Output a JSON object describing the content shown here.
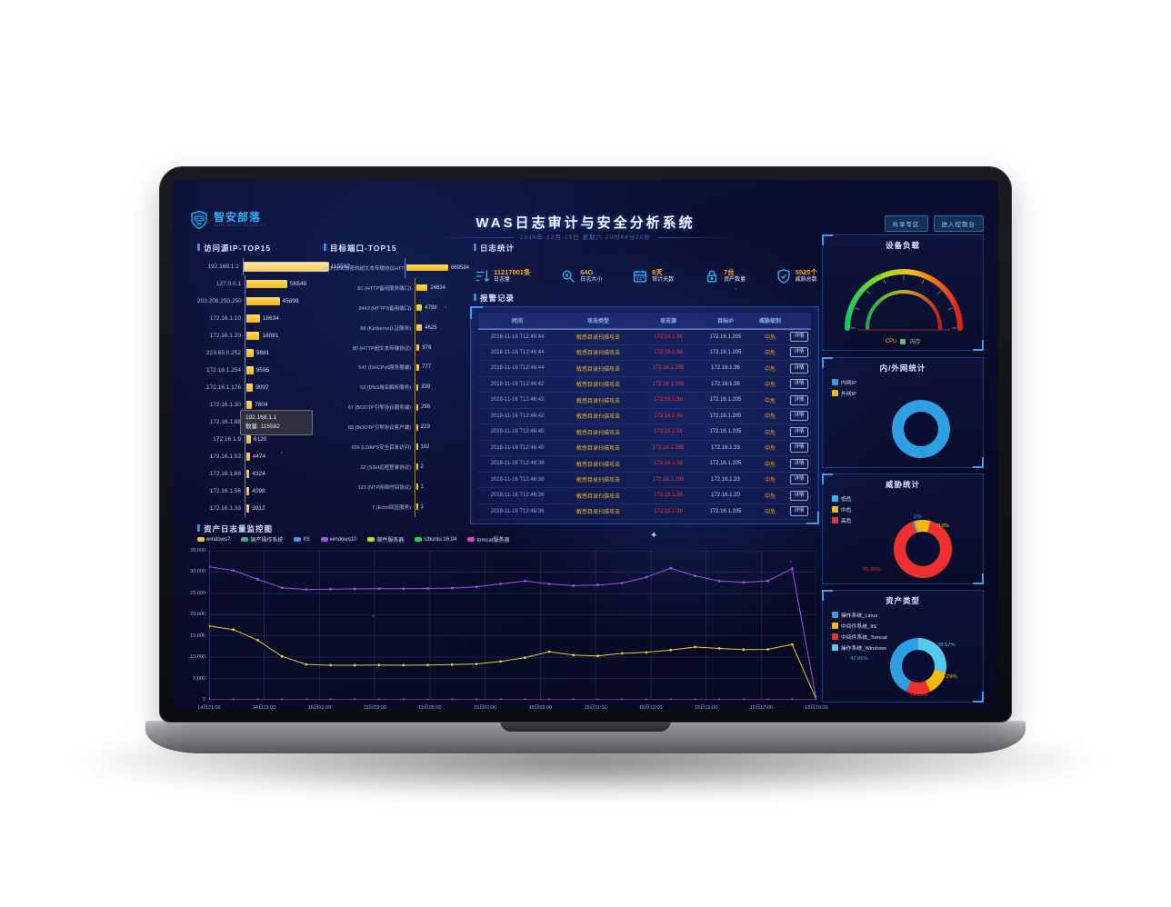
{
  "header": {
    "brand": "智安部落",
    "brand_sub": "INTELLIGENT SECURITY",
    "title": "WAS日志审计与安全分析系统",
    "subtitle": "2018年-12月-15日 星期六 20时44分20秒",
    "buttons": [
      {
        "label": "共享专区"
      },
      {
        "label": "进入控制台"
      }
    ]
  },
  "section_titles": {
    "log_stats": "日志统计",
    "alerts": "报警记录"
  },
  "stats": {
    "items": [
      {
        "value": "11217001条",
        "label": "日志量"
      },
      {
        "value": "64G",
        "label": "日志大小"
      },
      {
        "value": "8天",
        "label": "审计天数"
      },
      {
        "value": "7台",
        "label": "资产数量"
      },
      {
        "value": "5525个",
        "label": "威胁总数"
      }
    ]
  },
  "ip_tooltip": {
    "title": "192.168.1.1",
    "text": "数量: 115582"
  },
  "alerts": {
    "columns": [
      "时间",
      "攻击类型",
      "攻击源",
      "目标IP",
      "威胁级别",
      ""
    ],
    "action_label": "详情",
    "rows": [
      {
        "time": "2018-11-16 T12:46:44",
        "type": "敏感目录扫描攻击",
        "source": "172.16.1.36",
        "target": "172.16.1.205",
        "level": "中危"
      },
      {
        "time": "2018-11-16 T12:46:44",
        "type": "敏感目录扫描攻击",
        "source": "172.16.1.36",
        "target": "172.16.1.205",
        "level": "中危"
      },
      {
        "time": "2018-11-16 T12:46:44",
        "type": "敏感目录扫描攻击",
        "source": "172.16.1.205",
        "target": "172.16.1.36",
        "level": "中危"
      },
      {
        "time": "2018-11-16 T12:46:42",
        "type": "敏感目录扫描攻击",
        "source": "172.16.1.205",
        "target": "172.16.1.36",
        "level": "中危"
      },
      {
        "time": "2018-11-16 T12:46:42",
        "type": "敏感目录扫描攻击",
        "source": "172.16.1.36",
        "target": "172.16.1.205",
        "level": "中危"
      },
      {
        "time": "2018-11-16 T12:46:42",
        "type": "敏感目录扫描攻击",
        "source": "172.16.1.36",
        "target": "172.16.1.205",
        "level": "中危"
      },
      {
        "time": "2018-11-16 T12:46:40",
        "type": "敏感目录扫描攻击",
        "source": "172.16.1.36",
        "target": "172.16.1.205",
        "level": "中危"
      },
      {
        "time": "2018-11-16 T12:46:40",
        "type": "敏感目录扫描攻击",
        "source": "172.16.1.205",
        "target": "172.16.1.33",
        "level": "中危"
      },
      {
        "time": "2018-11-16 T12:46:38",
        "type": "敏感目录扫描攻击",
        "source": "172.16.1.36",
        "target": "172.16.1.205",
        "level": "中危"
      },
      {
        "time": "2018-11-16 T12:46:38",
        "type": "敏感目录扫描攻击",
        "source": "172.16.1.205",
        "target": "172.16.1.33",
        "level": "中危"
      },
      {
        "time": "2018-11-16 T12:46:36",
        "type": "敏感目录扫描攻击",
        "source": "172.16.1.36",
        "target": "172.16.1.20",
        "level": "中危"
      },
      {
        "time": "2018-11-16 T12:46:36",
        "type": "敏感目录扫描攻击",
        "source": "172.16.1.36",
        "target": "172.16.1.205",
        "level": "中危"
      }
    ]
  },
  "chart_data": [
    {
      "id": "ip_top15",
      "type": "bar",
      "orientation": "horizontal",
      "title": "访问源IP-TOP15",
      "highlight_index": 0,
      "categories": [
        "192.168.1.1",
        "127.0.0.1",
        "203.208.250.250",
        "172.16.1.10",
        "172.16.1.20",
        "223.65.0.252",
        "172.16.1.254",
        "172.16.1.176",
        "172.16.1.30",
        "172.16.1.88",
        "172.16.1.9",
        "172.16.1.52",
        "172.16.1.66",
        "172.16.1.56",
        "172.16.1.33"
      ],
      "values": [
        115582,
        56548,
        45898,
        18634,
        18081,
        9881,
        9595,
        9097,
        7804,
        7600,
        6120,
        4474,
        4324,
        4098,
        3912
      ],
      "bar_color": "#f2b81c"
    },
    {
      "id": "port_top15",
      "type": "bar",
      "orientation": "horizontal",
      "title": "目标端口-TOP15",
      "categories": [
        "443 (SSL加密的超文本传输协议HTTPS)",
        "81 (HTTP备用服务端口)",
        "8443 (HTTPS备用端口)",
        "88 (Kerberos认证服务)",
        "80 (HTTP超文本传输协议)",
        "547 (DHCPv6服务器端)",
        "53 (DNS域名解析服务)",
        "67 (BOOTP引导协议服务端)",
        "68 (BOOTP引导协议客户端)",
        "636 (LDAPS安全目录访问)",
        "22 (SSH远程登录协议)",
        "123 (NTP网络时间协议)",
        "7 (Echo回显服务)"
      ],
      "values": [
        669584,
        24634,
        4788,
        4625,
        978,
        777,
        339,
        298,
        223,
        102,
        2,
        1,
        1
      ],
      "bar_color": "#f2b81c"
    },
    {
      "id": "asset_log",
      "type": "line",
      "title": "资产日志量监控图",
      "x": [
        "14日21:00",
        "14日23:00",
        "15日01:00",
        "15日03:00",
        "15日05:00",
        "15日07:00",
        "15日09:00",
        "15日11:00",
        "15日13:00",
        "15日15:00",
        "15日17:00",
        "15日19:00"
      ],
      "ylim": [
        0,
        35000
      ],
      "ytick_step": 5000,
      "grid": true,
      "legend_position": "top",
      "series": [
        {
          "name": "windows7",
          "color": "#e8c832",
          "values": [
            17300,
            16500,
            14000,
            10200,
            8300,
            8100,
            8100,
            8150,
            8100,
            8150,
            8250,
            8400,
            9000,
            9900,
            11300,
            10500,
            10300,
            10900,
            11150,
            11700,
            12400,
            12050,
            11800,
            11850,
            13000,
            0
          ]
        },
        {
          "name": "国产操作系统",
          "color": "#2eb87a",
          "values": [
            0
          ]
        },
        {
          "name": "IIS",
          "color": "#4a90f0",
          "values": [
            0
          ]
        },
        {
          "name": "windows10",
          "color": "#a050f0",
          "values": [
            31200,
            30400,
            28300,
            26300,
            25900,
            26000,
            26050,
            26100,
            26100,
            26150,
            26250,
            26500,
            27200,
            27900,
            27200,
            26800,
            26950,
            27400,
            28800,
            30900,
            29100,
            27900,
            27600,
            27900,
            30800,
            0
          ]
        },
        {
          "name": "邮件服务器",
          "color": "#c0d830",
          "values": [
            0
          ]
        },
        {
          "name": "Ubuntu 16.04",
          "color": "#2ecc40",
          "values": [
            0
          ]
        },
        {
          "name": "tomcat服务器",
          "color": "#e040c0",
          "values": [
            0,
            0,
            0,
            0,
            0,
            0,
            0,
            0,
            0,
            0,
            0,
            0,
            0,
            0,
            0,
            0,
            0,
            0,
            0,
            0,
            0,
            0,
            0,
            0,
            0,
            0
          ]
        }
      ]
    },
    {
      "id": "device_load",
      "type": "gauge",
      "title": "设备负载",
      "legend": [
        "CPU",
        "内存"
      ],
      "legend_colors": [
        "#ff9f40",
        "#9ccc65"
      ]
    },
    {
      "id": "net_stats",
      "type": "pie",
      "title": "内/外网统计",
      "start_angle": 0,
      "slices": [
        {
          "label": "内网IP",
          "value": 100,
          "color": "#2e9fe0",
          "pct_label": "100%"
        },
        {
          "label": "外网IP",
          "value": 0,
          "color": "#f0b90b"
        }
      ]
    },
    {
      "id": "threat_stats",
      "type": "pie",
      "title": "威胁统计",
      "start_angle": -20,
      "slices": [
        {
          "label": "低危",
          "value": 1,
          "color": "#29b6f6",
          "pct_label": "1%"
        },
        {
          "label": "中危",
          "value": 8.8,
          "color": "#f0b90b",
          "pct_label": "8.8%"
        },
        {
          "label": "高危",
          "value": 90.2,
          "color": "#f03030",
          "pct_label": "90.20%"
        }
      ]
    },
    {
      "id": "asset_types",
      "type": "pie",
      "title": "资产类型",
      "start_angle": 0,
      "draw_order": [
        3,
        1,
        2,
        0
      ],
      "slices": [
        {
          "label": "操作系统_Linux",
          "value": 42.86,
          "color": "#2e9fe0",
          "pct_label": "42.86%"
        },
        {
          "label": "中间件系统_IIS",
          "value": 14.29,
          "color": "#f0b90b",
          "pct_label": "14.29%"
        },
        {
          "label": "中间件系统_Tomcat",
          "value": 14.29,
          "color": "#f03030",
          "pct_label": "14.29%"
        },
        {
          "label": "操作系统_Windows",
          "value": 28.57,
          "color": "#55c8f0",
          "pct_label": "28.57%"
        }
      ]
    }
  ]
}
